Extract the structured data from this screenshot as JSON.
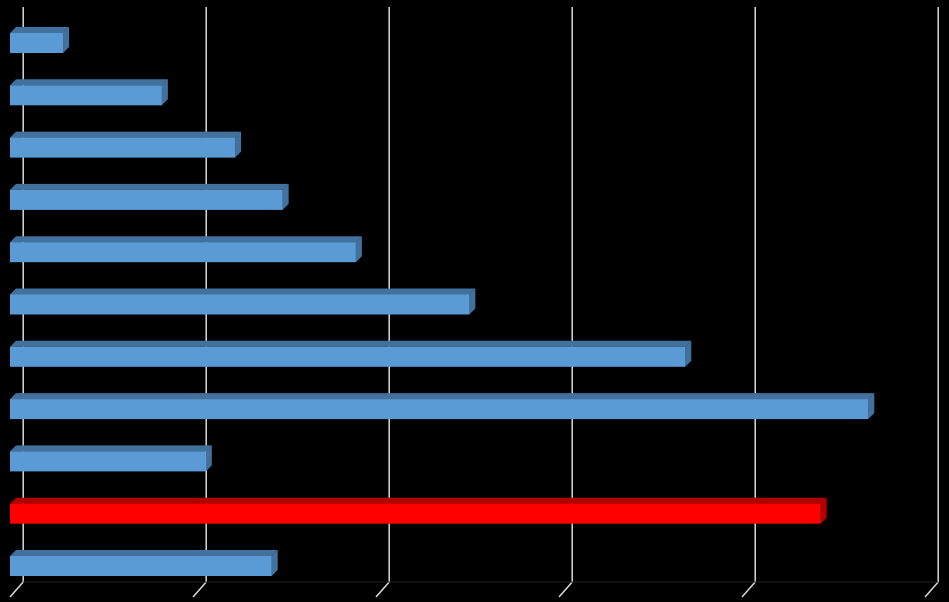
{
  "chart_data": {
    "type": "bar",
    "orientation": "horizontal",
    "style": "3d",
    "categories": [
      "",
      "",
      "",
      "",
      "",
      "",
      "",
      "",
      "",
      "",
      ""
    ],
    "values": [
      0.29,
      0.83,
      1.23,
      1.49,
      1.89,
      2.51,
      3.69,
      4.69,
      1.07,
      4.43,
      1.43
    ],
    "highlight_index": 9,
    "xlim": [
      0,
      5
    ],
    "grid": true,
    "legend": "none",
    "colors": {
      "background": "#000000",
      "bar": "#5B9BD5",
      "bar_dark": "#41719C",
      "highlight": "#FF0000",
      "highlight_dark": "#B00000",
      "grid": "#D9D9D9"
    }
  }
}
